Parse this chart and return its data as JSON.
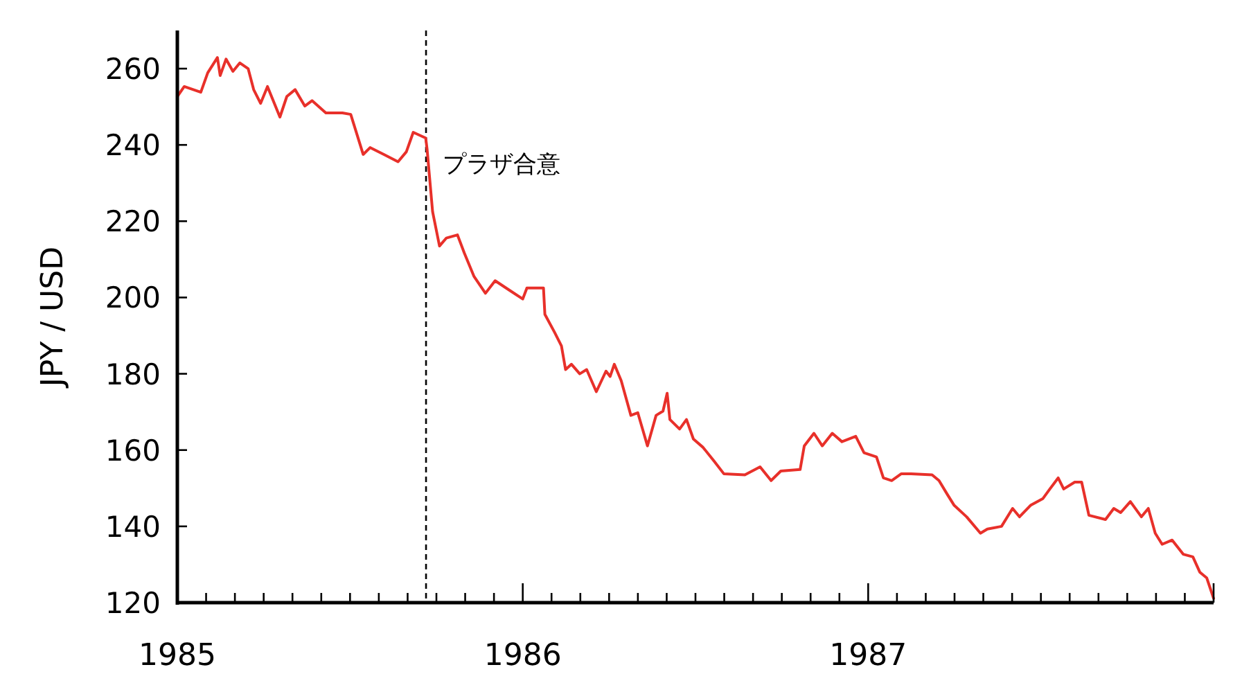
{
  "chart_data": {
    "type": "line",
    "ylabel": "JPY / USD",
    "xlim": [
      1985,
      1988
    ],
    "ylim": [
      120,
      270
    ],
    "xticks": [
      1985,
      {
        "value": 1985.0833,
        "label": null
      },
      {
        "value": 1985.1667,
        "label": null
      },
      {
        "value": 1985.25,
        "label": null
      },
      {
        "value": 1985.3333,
        "label": null
      },
      {
        "value": 1985.4167,
        "label": null
      },
      {
        "value": 1985.5,
        "label": null
      },
      {
        "value": 1985.5833,
        "label": null
      },
      {
        "value": 1985.6667,
        "label": null
      },
      {
        "value": 1985.75,
        "label": null
      },
      {
        "value": 1985.8333,
        "label": null
      },
      {
        "value": 1985.9167,
        "label": null
      },
      1986,
      {
        "value": 1986.0833,
        "label": null
      },
      {
        "value": 1986.1667,
        "label": null
      },
      {
        "value": 1986.25,
        "label": null
      },
      {
        "value": 1986.3333,
        "label": null
      },
      {
        "value": 1986.4167,
        "label": null
      },
      {
        "value": 1986.5,
        "label": null
      },
      {
        "value": 1986.5833,
        "label": null
      },
      {
        "value": 1986.6667,
        "label": null
      },
      {
        "value": 1986.75,
        "label": null
      },
      {
        "value": 1986.8333,
        "label": null
      },
      {
        "value": 1986.9167,
        "label": null
      },
      1987,
      {
        "value": 1987.0833,
        "label": null
      },
      {
        "value": 1987.1667,
        "label": null
      },
      {
        "value": 1987.25,
        "label": null
      },
      {
        "value": 1987.3333,
        "label": null
      },
      {
        "value": 1987.4167,
        "label": null
      },
      {
        "value": 1987.5,
        "label": null
      },
      {
        "value": 1987.5833,
        "label": null
      },
      {
        "value": 1987.6667,
        "label": null
      },
      {
        "value": 1987.75,
        "label": null
      },
      {
        "value": 1987.8333,
        "label": null
      },
      {
        "value": 1987.9167,
        "label": null
      },
      {
        "value": 1988,
        "label": null
      }
    ],
    "yticks": [
      120,
      140,
      160,
      180,
      200,
      220,
      240,
      260
    ],
    "ref_lines": [
      {
        "axis": "x",
        "value": 1985.72,
        "label": "プラザ合意",
        "color": "#000000",
        "line_style": "dashed"
      }
    ],
    "series": [
      {
        "color": "#e8302a",
        "x": [
          1985.0,
          1985.02,
          1985.068,
          1985.088,
          1985.116,
          1985.124,
          1985.141,
          1985.161,
          1985.181,
          1985.205,
          1985.221,
          1985.241,
          1985.261,
          1985.297,
          1985.317,
          1985.341,
          1985.369,
          1985.39,
          1985.43,
          1985.478,
          1985.502,
          1985.538,
          1985.558,
          1985.598,
          1985.639,
          1985.663,
          1985.683,
          1985.719,
          1985.723,
          1985.739,
          1985.759,
          1985.779,
          1985.811,
          1985.831,
          1985.859,
          1985.892,
          1985.92,
          1985.96,
          1986.0,
          1986.012,
          1986.06,
          1986.064,
          1986.092,
          1986.112,
          1986.124,
          1986.141,
          1986.165,
          1986.185,
          1986.213,
          1986.241,
          1986.253,
          1986.265,
          1986.285,
          1986.313,
          1986.333,
          1986.361,
          1986.386,
          1986.406,
          1986.418,
          1986.426,
          1986.454,
          1986.474,
          1986.494,
          1986.522,
          1986.554,
          1986.582,
          1986.643,
          1986.687,
          1986.719,
          1986.747,
          1986.803,
          1986.815,
          1986.843,
          1986.867,
          1986.896,
          1986.924,
          1986.964,
          1986.988,
          1987.024,
          1987.044,
          1987.068,
          1987.096,
          1987.124,
          1987.185,
          1987.205,
          1987.229,
          1987.249,
          1987.285,
          1987.325,
          1987.345,
          1987.386,
          1987.418,
          1987.438,
          1987.47,
          1987.506,
          1987.526,
          1987.55,
          1987.566,
          1987.598,
          1987.618,
          1987.639,
          1987.687,
          1987.711,
          1987.731,
          1987.759,
          1987.791,
          1987.811,
          1987.831,
          1987.851,
          1987.88,
          1987.912,
          1987.94,
          1987.96,
          1987.98,
          1988.0
        ],
        "values": [
          252.7,
          255.3,
          253.8,
          258.9,
          262.9,
          258.2,
          262.5,
          259.3,
          261.5,
          260,
          254.5,
          250.9,
          255.3,
          247.3,
          252.7,
          254.5,
          250.2,
          251.6,
          248.4,
          248.4,
          248,
          237.5,
          239.3,
          237.5,
          235.6,
          238.2,
          243.3,
          241.8,
          238.9,
          222.5,
          213.5,
          215.6,
          216.4,
          211.6,
          205.5,
          201.1,
          204.4,
          202,
          199.6,
          202.5,
          202.5,
          195.6,
          190.9,
          187.3,
          181.1,
          182.5,
          180,
          181.1,
          175.3,
          180.7,
          179.3,
          182.5,
          178.2,
          169.1,
          169.8,
          161.1,
          169.1,
          170.2,
          174.9,
          168,
          165.5,
          168,
          162.9,
          160.7,
          157.1,
          153.8,
          153.5,
          155.6,
          152,
          154.5,
          154.9,
          161.1,
          164.4,
          161.1,
          164.4,
          162.2,
          163.6,
          159.3,
          158.2,
          152.7,
          152,
          153.8,
          153.8,
          153.5,
          152,
          148.4,
          145.5,
          142.5,
          138.2,
          139.3,
          140,
          144.7,
          142.5,
          145.5,
          147.3,
          149.8,
          152.7,
          149.8,
          151.6,
          151.6,
          142.9,
          141.8,
          144.7,
          143.6,
          146.5,
          142.5,
          144.7,
          138.2,
          135.3,
          136.4,
          132.7,
          132,
          128,
          126.5,
          121.1
        ]
      }
    ]
  }
}
